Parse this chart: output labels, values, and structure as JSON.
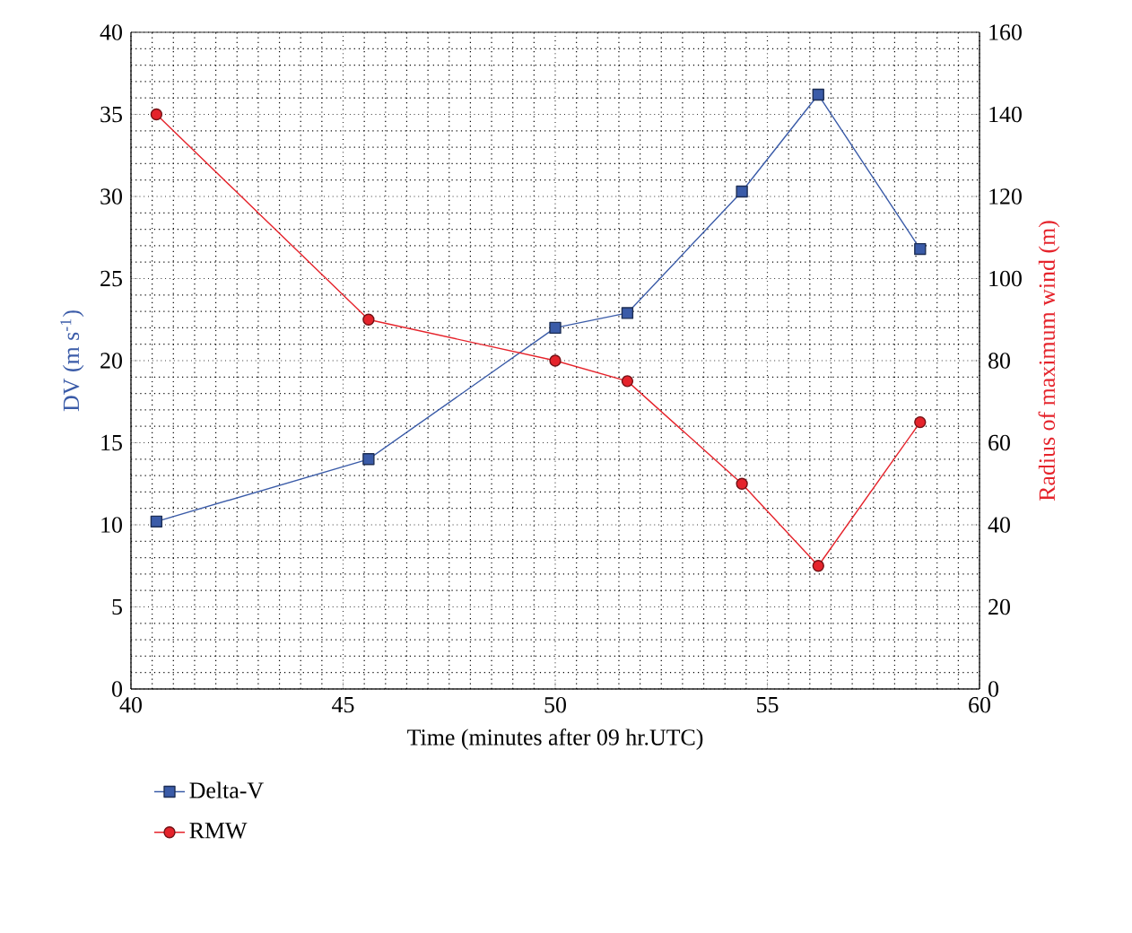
{
  "chart_data": {
    "type": "line",
    "xlabel": "Time (minutes after 09 hr.UTC)",
    "ylabel": "DV (m s$^{-1}$)",
    "y2label": "Radius of maximum wind (m)",
    "xlim": [
      40,
      60
    ],
    "xticks": [
      40,
      45,
      50,
      55,
      60
    ],
    "ylim": [
      0,
      40
    ],
    "yticks": [
      0,
      5,
      10,
      15,
      20,
      25,
      30,
      35,
      40
    ],
    "y2lim": [
      0,
      160
    ],
    "y2ticks": [
      0,
      20,
      40,
      60,
      80,
      100,
      120,
      140,
      160
    ],
    "grid": true,
    "legend": "bottom",
    "line_style": "solid",
    "series": [
      {
        "name": "Delta-V",
        "color": "#3a5ba8",
        "marker": "square",
        "x": [
          40.6,
          45.6,
          50.0,
          51.7,
          54.4,
          56.2,
          58.6
        ],
        "values": [
          10.2,
          14.0,
          22.0,
          22.9,
          30.3,
          36.2,
          26.8
        ]
      },
      {
        "name": "RMW",
        "color": "#e5232b",
        "marker": "circle",
        "axis": "y2",
        "x": [
          40.6,
          45.6,
          50.0,
          51.7,
          54.4,
          56.2,
          58.6
        ],
        "values": [
          140,
          90,
          80,
          75,
          50,
          30,
          65
        ]
      }
    ]
  }
}
